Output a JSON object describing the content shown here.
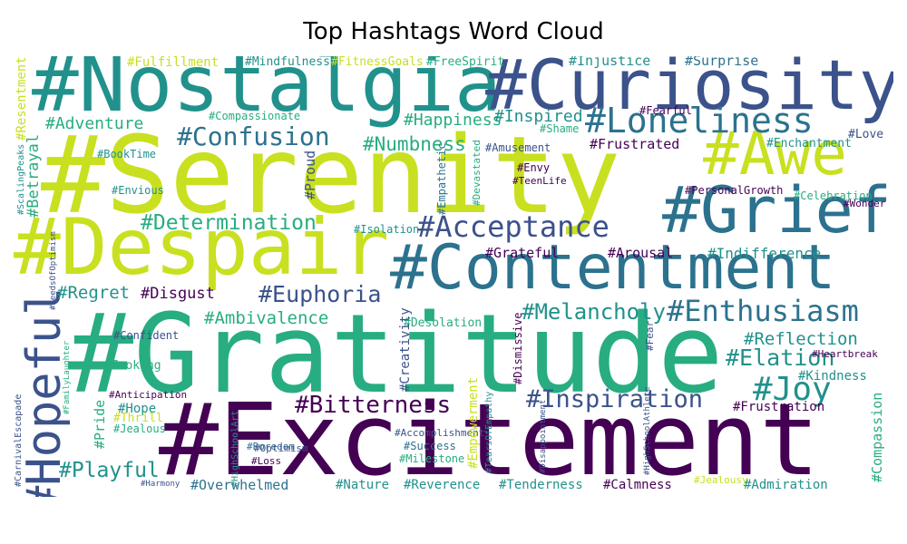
{
  "title": "Top Hashtags Word Cloud",
  "palette": {
    "purple": "#440154",
    "indigo": "#3b528b",
    "blue": "#2c728e",
    "teal": "#21918c",
    "green": "#27ad81",
    "lime": "#5ec962",
    "yellow": "#c8e020"
  },
  "words": [
    "#Serenity",
    "#Gratitude",
    "#Excitement",
    "#Nostalgia",
    "#Curiosity",
    "#Despair",
    "#Contentment",
    "#Grief",
    "#Awe",
    "#Loneliness",
    "#Hopeful",
    "#Enthusiasm",
    "#Acceptance",
    "#Confusion",
    "#Determination",
    "#Euphoria",
    "#Melancholy",
    "#Inspiration",
    "#Bitterness",
    "#Joy",
    "#Elation",
    "#Reflection",
    "#Ambivalence",
    "#Playful",
    "#Numbness",
    "#Happiness",
    "#Inspired",
    "#Adventure",
    "#Fulfillment",
    "#Mindfulness",
    "#FitnessGoals",
    "#FreeSpirit",
    "#Injustice",
    "#Surprise",
    "#Compassionate",
    "#Regret",
    "#Disgust",
    "#Grateful",
    "#Arousal",
    "#Indifference",
    "#Frustrated",
    "#Amusement",
    "#Envy",
    "#TeenLife",
    "#BookTime",
    "#Envious",
    "#Betrayal",
    "#Resentment",
    "#Proud",
    "#Isolation",
    "#Empathetic",
    "#Devastated",
    "#Shame",
    "#Fearful",
    "#Love",
    "#Enchantment",
    "#PersonalGrowth",
    "#Celebration",
    "#Wonder",
    "#Cooking",
    "#Confident",
    "#Desolation",
    "#Creativity",
    "#Dismissive",
    "#Fear",
    "#Kindness",
    "#Heartbreak",
    "#Frustration",
    "#Hope",
    "#Anticipation",
    "#Pride",
    "#Thrill",
    "#Jealous",
    "#Boredom",
    "#Optimism",
    "#Loss",
    "#Accomplishment",
    "#Success",
    "#Milestone",
    "#Empowerment",
    "#TearsOfEmpathy",
    "#Overwhelmed",
    "#Nature",
    "#Reverence",
    "#Tenderness",
    "#Calmness",
    "#Jealousy",
    "#Admiration",
    "#Harmony",
    "#Compassion",
    "#ScalingPeaks",
    "#SeedsOfOptimism",
    "#FamilyLaughter",
    "#HighSchoolArt",
    "#CarnivalEscapade",
    "#Disappointment",
    "#HighSchoolAthlete"
  ]
}
